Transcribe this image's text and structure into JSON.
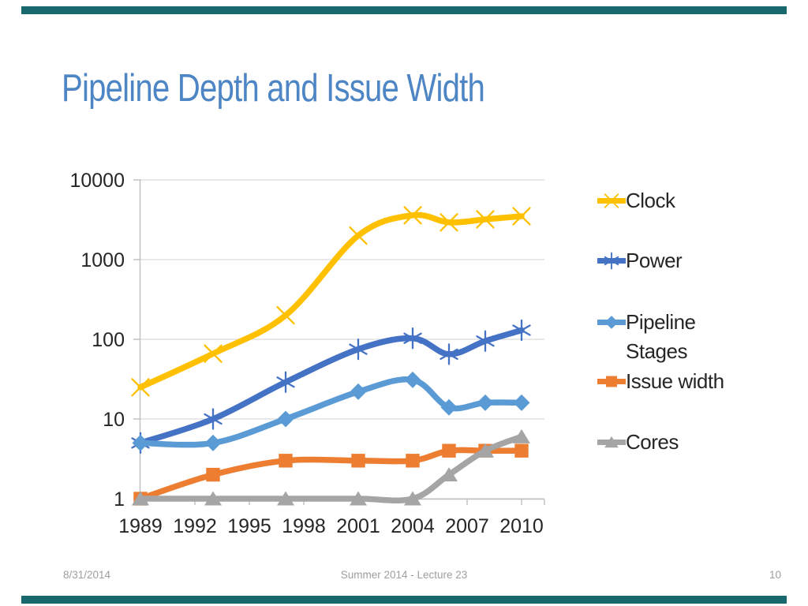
{
  "slide": {
    "title": "Pipeline Depth and Issue Width",
    "title_color": "#4E86C5",
    "accent_bar_color": "#17696E",
    "footer": {
      "date": "8/31/2014",
      "center": "Summer 2014 - Lecture 23",
      "page_number": "10"
    }
  },
  "chart_data": {
    "type": "line",
    "title": "",
    "xlabel": "",
    "ylabel": "",
    "x": [
      1989,
      1993,
      1997,
      2001,
      2004,
      2006,
      2008,
      2010
    ],
    "x_axis": {
      "tick_labels": [
        "1989",
        "1992",
        "1995",
        "1998",
        "2001",
        "2004",
        "2007",
        "2010"
      ],
      "tick_years": [
        1989,
        1992,
        1995,
        1998,
        2001,
        2004,
        2007,
        2010
      ],
      "min": 1989,
      "max": 2011.3
    },
    "y_axis": {
      "scale": "log",
      "tick_labels": [
        "1",
        "10",
        "100",
        "1000",
        "10000"
      ],
      "tick_values": [
        1,
        10,
        100,
        1000,
        10000
      ],
      "min": 1,
      "max": 10000
    },
    "grid": "horizontal",
    "legend_position": "right",
    "series": [
      {
        "name": "Clock",
        "color": "#FFC000",
        "marker": "x",
        "values": [
          25,
          66,
          200,
          2000,
          3600,
          2930,
          3200,
          3500
        ]
      },
      {
        "name": "Power",
        "color": "#4472C4",
        "marker": "star",
        "values": [
          5,
          10,
          29,
          75,
          103,
          65,
          95,
          130
        ]
      },
      {
        "name": "Pipeline Stages",
        "color": "#5B9BD5",
        "marker": "diamond",
        "values": [
          5,
          5,
          10,
          22,
          31,
          14,
          16,
          16
        ]
      },
      {
        "name": "Issue width",
        "color": "#ED7D31",
        "marker": "square",
        "values": [
          1,
          2,
          3,
          3,
          3,
          4,
          4,
          4
        ]
      },
      {
        "name": "Cores",
        "color": "#A5A5A5",
        "marker": "triangle",
        "values": [
          1,
          1,
          1,
          1,
          1,
          2,
          4,
          6
        ]
      }
    ]
  }
}
